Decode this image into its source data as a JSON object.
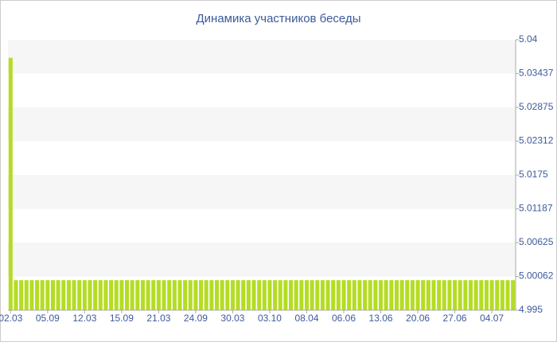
{
  "chart_data": {
    "type": "bar",
    "title": "Динамика участников беседы",
    "categories": [
      "02.03",
      null,
      null,
      null,
      null,
      null,
      null,
      "05.09",
      null,
      null,
      null,
      null,
      null,
      null,
      "12.03",
      null,
      null,
      null,
      null,
      null,
      null,
      "15.09",
      null,
      null,
      null,
      null,
      null,
      null,
      "21.03",
      null,
      null,
      null,
      null,
      null,
      null,
      "24.09",
      null,
      null,
      null,
      null,
      null,
      null,
      "30.03",
      null,
      null,
      null,
      null,
      null,
      null,
      "03.10",
      null,
      null,
      null,
      null,
      null,
      null,
      "08.04",
      null,
      null,
      null,
      null,
      null,
      null,
      "06.06",
      null,
      null,
      null,
      null,
      null,
      null,
      "13.06",
      null,
      null,
      null,
      null,
      null,
      null,
      "20.06",
      null,
      null,
      null,
      null,
      null,
      null,
      "27.06",
      null,
      null,
      null,
      null,
      null,
      null,
      "04.07",
      null,
      null,
      null,
      null
    ],
    "values": [
      5.037,
      5,
      5,
      5,
      5,
      5,
      5,
      5,
      5,
      5,
      5,
      5,
      5,
      5,
      5,
      5,
      5,
      5,
      5,
      5,
      5,
      5,
      5,
      5,
      5,
      5,
      5,
      5,
      5,
      5,
      5,
      5,
      5,
      5,
      5,
      5,
      5,
      5,
      5,
      5,
      5,
      5,
      5,
      5,
      5,
      5,
      5,
      5,
      5,
      5,
      5,
      5,
      5,
      5,
      5,
      5,
      5,
      5,
      5,
      5,
      5,
      5,
      5,
      5,
      5,
      5,
      5,
      5,
      5,
      5,
      5,
      5,
      5,
      5,
      5,
      5,
      5,
      5,
      5,
      5,
      5,
      5,
      5,
      5,
      5,
      5,
      5,
      5,
      5,
      5,
      5,
      5,
      5,
      5,
      5,
      5
    ],
    "color": "#b5dc24",
    "ylim": [
      4.995,
      5.04
    ],
    "yticks": [
      4.995,
      {
        "value": 5.000625,
        "label": "5.00062"
      },
      5.00625,
      {
        "value": 5.011875,
        "label": "5.01187"
      },
      5.0175,
      {
        "value": 5.023125,
        "label": "5.02312"
      },
      5.02875,
      {
        "value": 5.034375,
        "label": "5.03437"
      },
      5.04
    ],
    "grid": true
  }
}
